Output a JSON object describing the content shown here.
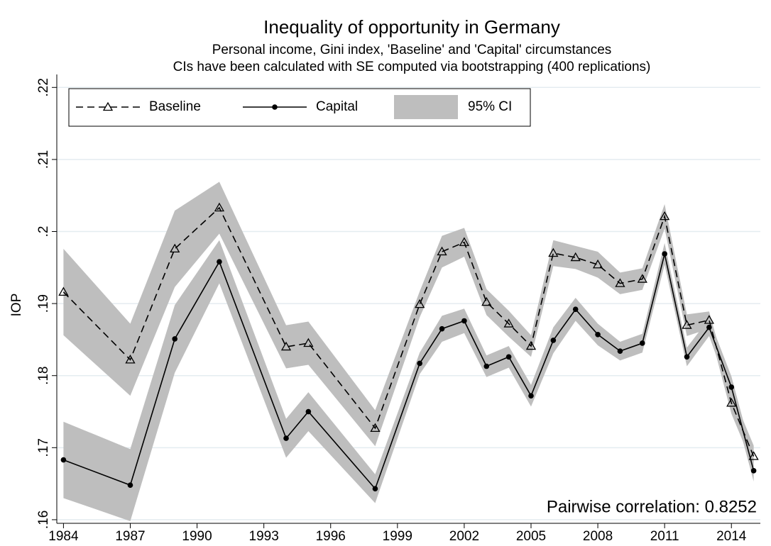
{
  "chart_data": {
    "type": "line",
    "title": "Inequality of opportunity in Germany",
    "subtitle": [
      "Personal income, Gini index, 'Baseline' and 'Capital' circumstances",
      "CIs have been calculated with SE computed via bootstrapping (400 replications)"
    ],
    "y_label": "IOP",
    "annotation": "Pairwise correlation: 0.8252",
    "x": [
      1984,
      1987,
      1989,
      1991,
      1994,
      1995,
      1998,
      2000,
      2001,
      2002,
      2003,
      2004,
      2005,
      2006,
      2007,
      2008,
      2009,
      2010,
      2011,
      2012,
      2013,
      2014,
      2015
    ],
    "series": [
      {
        "name": "Baseline",
        "color": "#000000",
        "values": [
          0.1916,
          0.1822,
          0.1976,
          0.2033,
          0.184,
          0.1845,
          0.1727,
          0.1899,
          0.1972,
          0.1985,
          0.1902,
          0.1872,
          0.1841,
          0.197,
          0.1964,
          0.1954,
          0.1928,
          0.1934,
          0.2021,
          0.187,
          0.1877,
          0.1762,
          0.1688
        ],
        "lower": [
          0.1856,
          0.1772,
          0.1923,
          0.1997,
          0.181,
          0.1815,
          0.1702,
          0.1881,
          0.195,
          0.1965,
          0.1884,
          0.1854,
          0.1826,
          0.1952,
          0.1948,
          0.1936,
          0.1913,
          0.1919,
          0.2004,
          0.1855,
          0.1865,
          0.1747,
          0.1673
        ],
        "upper": [
          0.1976,
          0.1872,
          0.2029,
          0.2069,
          0.187,
          0.1875,
          0.1752,
          0.1917,
          0.1994,
          0.2005,
          0.192,
          0.189,
          0.1856,
          0.1988,
          0.198,
          0.1972,
          0.1943,
          0.1949,
          0.2038,
          0.1885,
          0.1889,
          0.1777,
          0.1703
        ]
      },
      {
        "name": "Capital",
        "color": "#000000",
        "values": [
          0.1683,
          0.1648,
          0.1851,
          0.1958,
          0.1713,
          0.175,
          0.1643,
          0.1817,
          0.1865,
          0.1876,
          0.1813,
          0.1826,
          0.1772,
          0.1849,
          0.1892,
          0.1857,
          0.1834,
          0.1845,
          0.1969,
          0.1826,
          0.1867,
          0.1784,
          0.1668
        ],
        "lower": [
          0.163,
          0.1598,
          0.1804,
          0.1928,
          0.1686,
          0.1723,
          0.1623,
          0.1802,
          0.1847,
          0.1859,
          0.1798,
          0.1811,
          0.1757,
          0.1831,
          0.1876,
          0.1842,
          0.1821,
          0.1832,
          0.1954,
          0.1813,
          0.1855,
          0.1769,
          0.1653
        ],
        "upper": [
          0.1736,
          0.1698,
          0.1898,
          0.1988,
          0.174,
          0.1777,
          0.1663,
          0.1832,
          0.1883,
          0.1893,
          0.1828,
          0.1841,
          0.1787,
          0.1867,
          0.1908,
          0.1872,
          0.1847,
          0.1858,
          0.1984,
          0.1839,
          0.1879,
          0.1799,
          0.1683
        ]
      }
    ],
    "ci_name": "95% CI",
    "ci_color": "#bebebe",
    "xlim": [
      1983.7,
      2015.3
    ],
    "xticks": [
      1984,
      1987,
      1990,
      1993,
      1996,
      1999,
      2002,
      2005,
      2008,
      2011,
      2014
    ],
    "ylim": [
      0.1595,
      0.2218
    ],
    "yticks": [
      {
        "value": 0.16,
        "label": ".16"
      },
      {
        "value": 0.17,
        "label": ".17"
      },
      {
        "value": 0.18,
        "label": ".18"
      },
      {
        "value": 0.19,
        "label": ".19"
      },
      {
        "value": 0.2,
        "label": ".2"
      },
      {
        "value": 0.21,
        "label": ".21"
      },
      {
        "value": 0.22,
        "label": ".22"
      }
    ],
    "grid": true,
    "legend": "top-left"
  }
}
